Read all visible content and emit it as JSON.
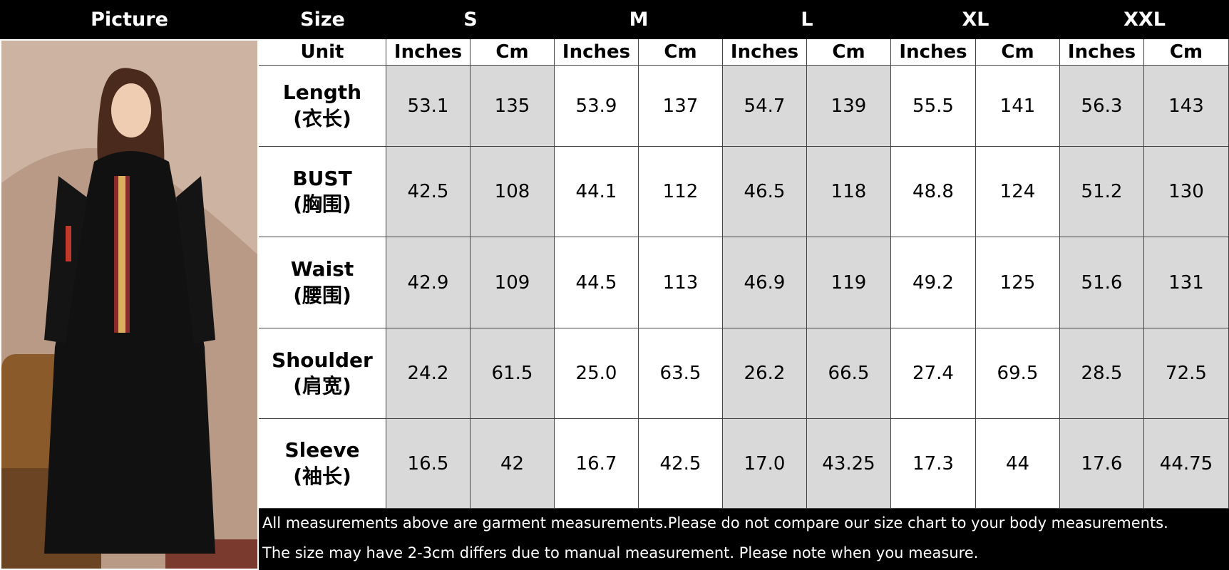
{
  "header": {
    "picture": "Picture",
    "size": "Size",
    "sizes": [
      "S",
      "M",
      "L",
      "XL",
      "XXL"
    ]
  },
  "unit_row": {
    "label": "Unit",
    "units": [
      "Inches",
      "Cm",
      "Inches",
      "Cm",
      "Inches",
      "Cm",
      "Inches",
      "Cm",
      "Inches",
      "Cm"
    ]
  },
  "rows": [
    {
      "name": "Length",
      "name_cn": "(衣长)",
      "values": [
        "53.1",
        "135",
        "53.9",
        "137",
        "54.7",
        "139",
        "55.5",
        "141",
        "56.3",
        "143"
      ]
    },
    {
      "name": "BUST",
      "name_cn": "(胸围)",
      "values": [
        "42.5",
        "108",
        "44.1",
        "112",
        "46.5",
        "118",
        "48.8",
        "124",
        "51.2",
        "130"
      ]
    },
    {
      "name": "Waist",
      "name_cn": "(腰围)",
      "values": [
        "42.9",
        "109",
        "44.5",
        "113",
        "46.9",
        "119",
        "49.2",
        "125",
        "51.6",
        "131"
      ]
    },
    {
      "name": "Shoulder",
      "name_cn": "(肩宽)",
      "values": [
        "24.2",
        "61.5",
        "25.0",
        "63.5",
        "26.2",
        "66.5",
        "27.4",
        "69.5",
        "28.5",
        "72.5"
      ]
    },
    {
      "name": "Sleeve",
      "name_cn": "(袖长)",
      "values": [
        "16.5",
        "42",
        "16.7",
        "42.5",
        "17.0",
        "43.25",
        "17.3",
        "44",
        "17.6",
        "44.75"
      ]
    }
  ],
  "notes": [
    "All measurements above are garment measurements.Please do not compare our size chart to your body measurements.",
    "The size may have 2-3cm differs due to manual measurement. Please note when you measure."
  ]
}
